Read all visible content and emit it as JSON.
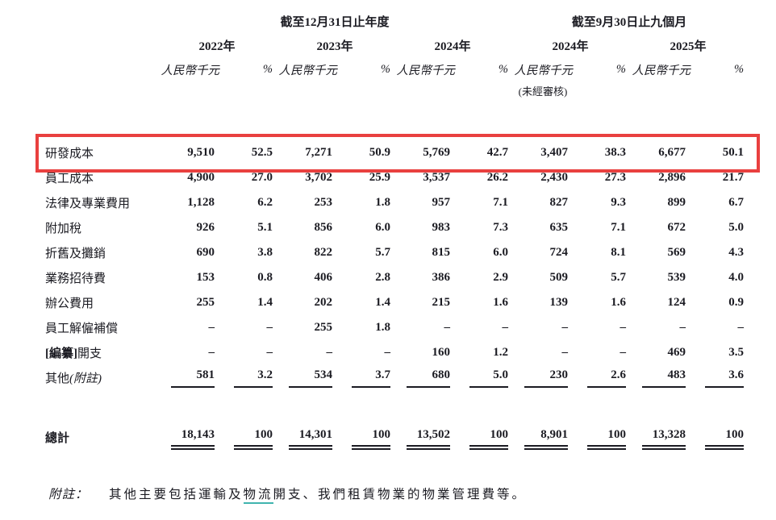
{
  "colors": {
    "text": "#1b1b22",
    "highlight_border": "#e9403f",
    "note_underline": "#3fb4ae"
  },
  "table": {
    "period_headers": {
      "annual": "截至12月31日止年度",
      "nine_months": "截至9月30日止九個月"
    },
    "year_headers": [
      "2022年",
      "2023年",
      "2024年",
      "2024年",
      "2025年"
    ],
    "unit_label": "人民幣千元",
    "percent_label": "%",
    "unaudited_label": "(未經審核)",
    "rows": [
      {
        "label": "研發成本",
        "highlighted": true,
        "values": [
          "9,510",
          "52.5",
          "7,271",
          "50.9",
          "5,769",
          "42.7",
          "3,407",
          "38.3",
          "6,677",
          "50.1"
        ]
      },
      {
        "label": "員工成本",
        "values": [
          "4,900",
          "27.0",
          "3,702",
          "25.9",
          "3,537",
          "26.2",
          "2,430",
          "27.3",
          "2,896",
          "21.7"
        ]
      },
      {
        "label": "法律及專業費用",
        "values": [
          "1,128",
          "6.2",
          "253",
          "1.8",
          "957",
          "7.1",
          "827",
          "9.3",
          "899",
          "6.7"
        ]
      },
      {
        "label": "附加稅",
        "values": [
          "926",
          "5.1",
          "856",
          "6.0",
          "983",
          "7.3",
          "635",
          "7.1",
          "672",
          "5.0"
        ]
      },
      {
        "label": "折舊及攤銷",
        "values": [
          "690",
          "3.8",
          "822",
          "5.7",
          "815",
          "6.0",
          "724",
          "8.1",
          "569",
          "4.3"
        ]
      },
      {
        "label": "業務招待費",
        "values": [
          "153",
          "0.8",
          "406",
          "2.8",
          "386",
          "2.9",
          "509",
          "5.7",
          "539",
          "4.0"
        ]
      },
      {
        "label": "辦公費用",
        "values": [
          "255",
          "1.4",
          "202",
          "1.4",
          "215",
          "1.6",
          "139",
          "1.6",
          "124",
          "0.9"
        ]
      },
      {
        "label": "員工解僱補償",
        "values": [
          "–",
          "–",
          "255",
          "1.8",
          "–",
          "–",
          "–",
          "–",
          "–",
          "–"
        ]
      },
      {
        "label_bold": "[編纂]",
        "label_rest": "開支",
        "values": [
          "–",
          "–",
          "–",
          "–",
          "160",
          "1.2",
          "–",
          "–",
          "469",
          "3.5"
        ]
      },
      {
        "label": "其他",
        "label_note": "(附註)",
        "values": [
          "581",
          "3.2",
          "534",
          "3.7",
          "680",
          "5.0",
          "230",
          "2.6",
          "483",
          "3.6"
        ]
      }
    ],
    "total_row": {
      "label": "總計",
      "values": [
        "18,143",
        "100",
        "14,301",
        "100",
        "13,502",
        "100",
        "8,901",
        "100",
        "13,328",
        "100"
      ]
    }
  },
  "footnote": {
    "label": "附註：",
    "text_before": "其他主要包括運輸及",
    "underlined_text": "物流",
    "text_after": "開支、我們租賃物業的物業管理費等。"
  }
}
